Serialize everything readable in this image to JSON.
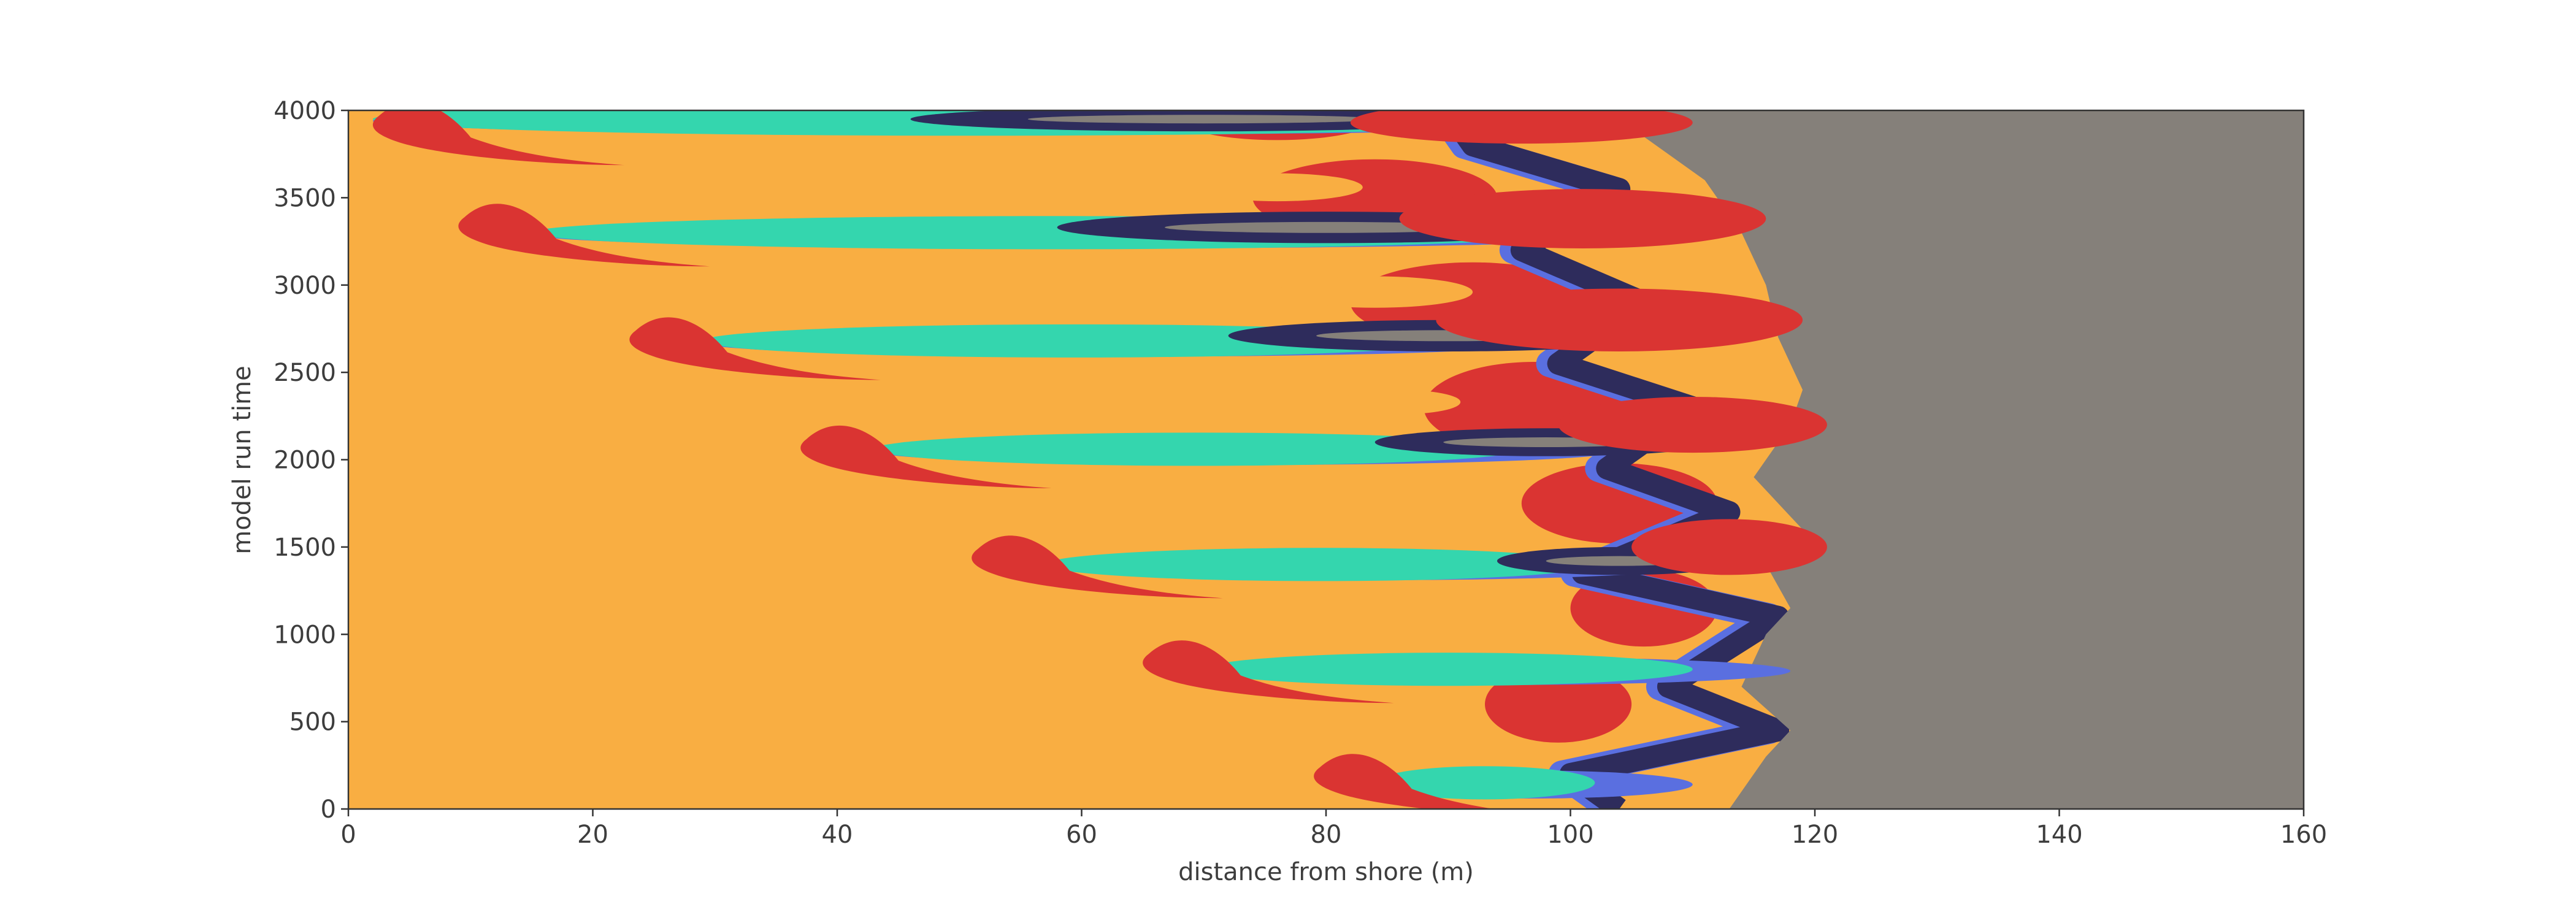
{
  "chart_data": {
    "type": "image",
    "xlabel": "distance from shore (m)",
    "ylabel": "model run time",
    "xlim": [
      0,
      160
    ],
    "ylim": [
      0,
      4000
    ],
    "xticks": [
      0,
      20,
      40,
      60,
      80,
      100,
      120,
      140,
      160
    ],
    "yticks": [
      0,
      500,
      1000,
      1500,
      2000,
      2500,
      3000,
      3500,
      4000
    ],
    "colors": [
      "#f9ae42",
      "#34d6ae",
      "#da3432",
      "#2e2c5c",
      "#5a6fe0",
      "#85807a"
    ]
  }
}
